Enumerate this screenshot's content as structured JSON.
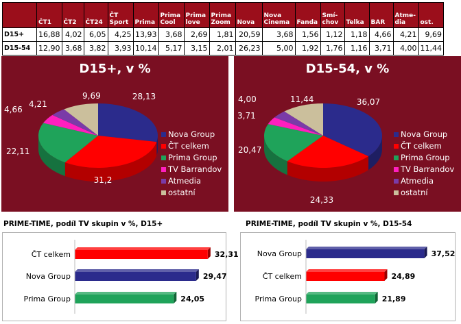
{
  "table": {
    "headers": [
      "",
      "ČT1",
      "ČT2",
      "ČT24",
      "ČT Sport",
      "Prima",
      "Prima Cool",
      "Prima love",
      "Prima Zoom",
      "Nova",
      "Nova Cinema",
      "Fanda",
      "Smí-chov",
      "Telka",
      "BAR",
      "Atme-dia",
      "ost."
    ],
    "rows": [
      [
        "D15+",
        "16,88",
        "4,02",
        "6,05",
        "4,25",
        "13,93",
        "3,68",
        "2,69",
        "1,81",
        "20,59",
        "3,68",
        "1,56",
        "1,12",
        "1,18",
        "4,66",
        "4,21",
        "9,69"
      ],
      [
        "D15-54",
        "12,90",
        "3,68",
        "3,82",
        "3,93",
        "10,14",
        "5,17",
        "3,15",
        "2,01",
        "26,23",
        "5,00",
        "1,92",
        "1,76",
        "1,16",
        "3,71",
        "4,00",
        "11,44"
      ]
    ]
  },
  "chart_data": [
    {
      "type": "pie",
      "title": "D15+, v %",
      "categories": [
        "Nova Group",
        "ČT celkem",
        "Prima Group",
        "TV Barrandov",
        "Atmedia",
        "ostatní"
      ],
      "values": [
        28.13,
        31.2,
        22.11,
        4.66,
        4.21,
        9.69
      ],
      "labels": [
        "28,13",
        "31,2",
        "22,11",
        "4,66",
        "4,21",
        "9,69"
      ],
      "colors": [
        "#2b2b8c",
        "#ff0000",
        "#1fa35a",
        "#ff1fbf",
        "#7a3ba8",
        "#cbbf9c"
      ],
      "legend": "right"
    },
    {
      "type": "pie",
      "title": "D15-54, v %",
      "categories": [
        "Nova Group",
        "ČT celkem",
        "Prima Group",
        "TV Barrandov",
        "Atmedia",
        "ostatní"
      ],
      "values": [
        36.07,
        24.33,
        20.47,
        3.71,
        4.0,
        11.44
      ],
      "labels": [
        "36,07",
        "24,33",
        "20,47",
        "3,71",
        "4,00",
        "11,44"
      ],
      "colors": [
        "#2b2b8c",
        "#ff0000",
        "#1fa35a",
        "#ff1fbf",
        "#7a3ba8",
        "#cbbf9c"
      ],
      "legend": "right"
    },
    {
      "type": "bar",
      "orientation": "horizontal",
      "title": "PRIME-TIME, podíl TV skupin v %, D15+",
      "categories": [
        "ČT celkem",
        "Nova Group",
        "Prima Group"
      ],
      "values": [
        32.31,
        29.47,
        24.05
      ],
      "labels": [
        "32,31",
        "29,47",
        "24,05"
      ],
      "colors": [
        "#ff0000",
        "#2b2b8c",
        "#1fa35a"
      ]
    },
    {
      "type": "bar",
      "orientation": "horizontal",
      "title": "PRIME-TIME, podíl TV skupin v %, D15-54",
      "categories": [
        "Nova Group",
        "ČT celkem",
        "Prima Group"
      ],
      "values": [
        37.52,
        24.89,
        21.89
      ],
      "labels": [
        "37,52",
        "24,89",
        "21,89"
      ],
      "colors": [
        "#2b2b8c",
        "#ff0000",
        "#1fa35a"
      ]
    }
  ]
}
